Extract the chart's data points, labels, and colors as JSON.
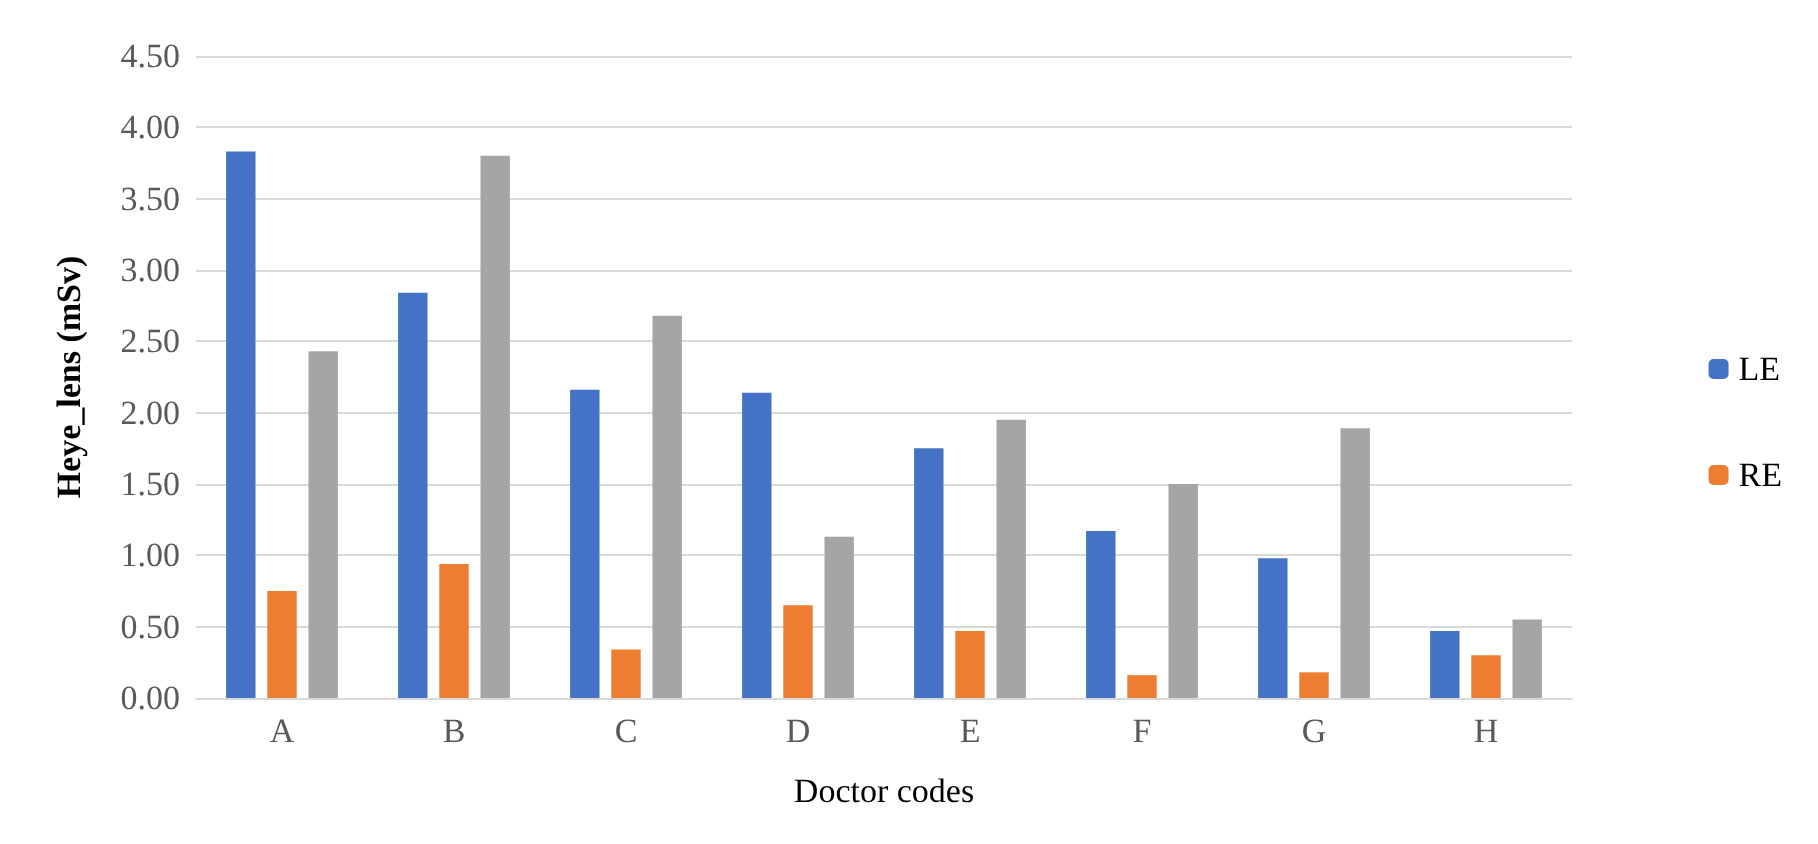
{
  "chart_data": {
    "type": "bar",
    "xlabel": "Doctor codes",
    "ylabel": "Heye_lens (mSv)",
    "categories": [
      "A",
      "B",
      "C",
      "D",
      "E",
      "F",
      "G",
      "H"
    ],
    "series": [
      {
        "name": "LE",
        "color": "#4472c4",
        "values": [
          3.83,
          2.84,
          2.16,
          2.14,
          1.75,
          1.17,
          0.98,
          0.47
        ]
      },
      {
        "name": "RE",
        "color": "#ed7d31",
        "values": [
          0.75,
          0.94,
          0.34,
          0.65,
          0.47,
          0.16,
          0.18,
          0.3
        ]
      },
      {
        "color": "#a5a5a5",
        "values": [
          2.43,
          3.8,
          2.68,
          1.13,
          1.95,
          1.5,
          1.89,
          0.55
        ]
      }
    ],
    "ylim": [
      0,
      4.5
    ],
    "yticks": [
      {
        "value": 0,
        "label": "0.00"
      },
      {
        "value": 0.5,
        "label": "0.50"
      },
      {
        "value": 1,
        "label": "1.00"
      },
      {
        "value": 1.5,
        "label": "1.50"
      },
      {
        "value": 2,
        "label": "2.00"
      },
      {
        "value": 2.5,
        "label": "2.50"
      },
      {
        "value": 3,
        "label": "3.00"
      },
      {
        "value": 3.5,
        "label": "3.50"
      },
      {
        "value": 4,
        "label": "4.00"
      },
      {
        "value": 4.5,
        "label": "4.50"
      }
    ],
    "grid": "y",
    "legend": "right"
  }
}
